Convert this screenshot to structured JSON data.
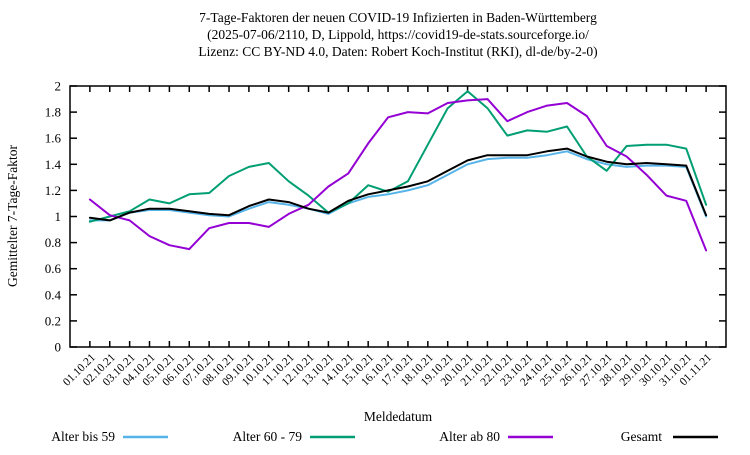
{
  "title": {
    "line1": "7-Tage-Faktoren der neuen COVID-19 Infizierten in Baden-Württemberg",
    "line2": "(2025-07-06/2110, D, Lippold, https://covid19-de-stats.sourceforge.io/",
    "line3": "Lizenz: CC BY-ND 4.0, Daten: Robert Koch-Institut (RKI), dl-de/by-2-0)"
  },
  "chart_data": {
    "type": "line",
    "title": "7-Tage-Faktoren der neuen COVID-19 Infizierten in Baden-Württemberg",
    "xlabel": "Meldedatum",
    "ylabel": "Gemittelter 7-Tage-Faktor",
    "ylim": [
      0,
      2
    ],
    "ytick_labels": [
      "0",
      "0.2",
      "0.4",
      "0.6",
      "0.8",
      "1",
      "1.2",
      "1.4",
      "1.6",
      "1.8",
      "2"
    ],
    "grid": false,
    "legend_position": "bottom",
    "categories": [
      "01.10.21",
      "02.10.21",
      "03.10.21",
      "04.10.21",
      "05.10.21",
      "06.10.21",
      "07.10.21",
      "08.10.21",
      "09.10.21",
      "10.10.21",
      "11.10.21",
      "12.10.21",
      "13.10.21",
      "14.10.21",
      "15.10.21",
      "16.10.21",
      "17.10.21",
      "18.10.21",
      "19.10.21",
      "20.10.21",
      "21.10.21",
      "22.10.21",
      "23.10.21",
      "24.10.21",
      "25.10.21",
      "26.10.21",
      "27.10.21",
      "28.10.21",
      "29.10.21",
      "30.10.21",
      "31.10.21",
      "01.11.21"
    ],
    "series": [
      {
        "name": "Alter bis 59",
        "color": "#56B4E9",
        "values": [
          0.97,
          0.97,
          1.03,
          1.05,
          1.05,
          1.03,
          1.01,
          1.0,
          1.06,
          1.11,
          1.09,
          1.06,
          1.02,
          1.1,
          1.15,
          1.17,
          1.2,
          1.24,
          1.32,
          1.4,
          1.44,
          1.45,
          1.45,
          1.47,
          1.5,
          1.44,
          1.4,
          1.38,
          1.39,
          1.39,
          1.38,
          1.0
        ]
      },
      {
        "name": "Alter 60 - 79",
        "color": "#009E73",
        "values": [
          0.96,
          1.0,
          1.04,
          1.13,
          1.1,
          1.17,
          1.18,
          1.31,
          1.38,
          1.41,
          1.27,
          1.16,
          1.03,
          1.1,
          1.24,
          1.19,
          1.27,
          1.55,
          1.83,
          1.96,
          1.83,
          1.62,
          1.66,
          1.65,
          1.69,
          1.46,
          1.35,
          1.54,
          1.55,
          1.55,
          1.52,
          1.09
        ]
      },
      {
        "name": "Alter ab 80",
        "color": "#9400D3",
        "values": [
          1.13,
          1.01,
          0.97,
          0.85,
          0.78,
          0.75,
          0.91,
          0.95,
          0.95,
          0.92,
          1.02,
          1.09,
          1.23,
          1.33,
          1.56,
          1.76,
          1.8,
          1.79,
          1.87,
          1.89,
          1.9,
          1.73,
          1.8,
          1.85,
          1.87,
          1.77,
          1.54,
          1.46,
          1.32,
          1.16,
          1.12,
          0.74
        ]
      },
      {
        "name": "Gesamt",
        "color": "#000000",
        "values": [
          0.99,
          0.97,
          1.03,
          1.06,
          1.06,
          1.04,
          1.02,
          1.01,
          1.08,
          1.13,
          1.11,
          1.06,
          1.03,
          1.12,
          1.17,
          1.2,
          1.23,
          1.27,
          1.35,
          1.43,
          1.47,
          1.47,
          1.47,
          1.5,
          1.52,
          1.46,
          1.42,
          1.4,
          1.41,
          1.4,
          1.39,
          1.01
        ]
      }
    ]
  }
}
